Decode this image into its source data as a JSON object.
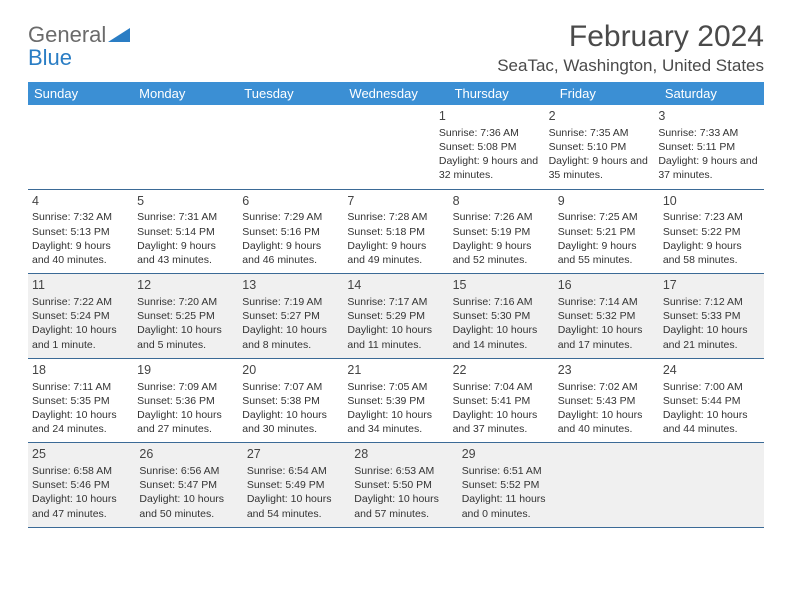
{
  "logo": {
    "text1": "General",
    "text2": "Blue",
    "shape_color": "#2a7dc4",
    "text1_color": "#6b6b6b",
    "text2_color": "#2a7dc4"
  },
  "title": "February 2024",
  "location": "SeaTac, Washington, United States",
  "colors": {
    "header_bg": "#3b8fd4",
    "header_text": "#ffffff",
    "row_border": "#3b6a96",
    "shaded_bg": "#f0f0f0"
  },
  "day_names": [
    "Sunday",
    "Monday",
    "Tuesday",
    "Wednesday",
    "Thursday",
    "Friday",
    "Saturday"
  ],
  "weeks": [
    [
      null,
      null,
      null,
      null,
      {
        "n": "1",
        "sr": "Sunrise: 7:36 AM",
        "ss": "Sunset: 5:08 PM",
        "dl": "Daylight: 9 hours and 32 minutes."
      },
      {
        "n": "2",
        "sr": "Sunrise: 7:35 AM",
        "ss": "Sunset: 5:10 PM",
        "dl": "Daylight: 9 hours and 35 minutes."
      },
      {
        "n": "3",
        "sr": "Sunrise: 7:33 AM",
        "ss": "Sunset: 5:11 PM",
        "dl": "Daylight: 9 hours and 37 minutes."
      }
    ],
    [
      {
        "n": "4",
        "sr": "Sunrise: 7:32 AM",
        "ss": "Sunset: 5:13 PM",
        "dl": "Daylight: 9 hours and 40 minutes."
      },
      {
        "n": "5",
        "sr": "Sunrise: 7:31 AM",
        "ss": "Sunset: 5:14 PM",
        "dl": "Daylight: 9 hours and 43 minutes."
      },
      {
        "n": "6",
        "sr": "Sunrise: 7:29 AM",
        "ss": "Sunset: 5:16 PM",
        "dl": "Daylight: 9 hours and 46 minutes."
      },
      {
        "n": "7",
        "sr": "Sunrise: 7:28 AM",
        "ss": "Sunset: 5:18 PM",
        "dl": "Daylight: 9 hours and 49 minutes."
      },
      {
        "n": "8",
        "sr": "Sunrise: 7:26 AM",
        "ss": "Sunset: 5:19 PM",
        "dl": "Daylight: 9 hours and 52 minutes."
      },
      {
        "n": "9",
        "sr": "Sunrise: 7:25 AM",
        "ss": "Sunset: 5:21 PM",
        "dl": "Daylight: 9 hours and 55 minutes."
      },
      {
        "n": "10",
        "sr": "Sunrise: 7:23 AM",
        "ss": "Sunset: 5:22 PM",
        "dl": "Daylight: 9 hours and 58 minutes."
      }
    ],
    [
      {
        "n": "11",
        "sr": "Sunrise: 7:22 AM",
        "ss": "Sunset: 5:24 PM",
        "dl": "Daylight: 10 hours and 1 minute."
      },
      {
        "n": "12",
        "sr": "Sunrise: 7:20 AM",
        "ss": "Sunset: 5:25 PM",
        "dl": "Daylight: 10 hours and 5 minutes."
      },
      {
        "n": "13",
        "sr": "Sunrise: 7:19 AM",
        "ss": "Sunset: 5:27 PM",
        "dl": "Daylight: 10 hours and 8 minutes."
      },
      {
        "n": "14",
        "sr": "Sunrise: 7:17 AM",
        "ss": "Sunset: 5:29 PM",
        "dl": "Daylight: 10 hours and 11 minutes."
      },
      {
        "n": "15",
        "sr": "Sunrise: 7:16 AM",
        "ss": "Sunset: 5:30 PM",
        "dl": "Daylight: 10 hours and 14 minutes."
      },
      {
        "n": "16",
        "sr": "Sunrise: 7:14 AM",
        "ss": "Sunset: 5:32 PM",
        "dl": "Daylight: 10 hours and 17 minutes."
      },
      {
        "n": "17",
        "sr": "Sunrise: 7:12 AM",
        "ss": "Sunset: 5:33 PM",
        "dl": "Daylight: 10 hours and 21 minutes."
      }
    ],
    [
      {
        "n": "18",
        "sr": "Sunrise: 7:11 AM",
        "ss": "Sunset: 5:35 PM",
        "dl": "Daylight: 10 hours and 24 minutes."
      },
      {
        "n": "19",
        "sr": "Sunrise: 7:09 AM",
        "ss": "Sunset: 5:36 PM",
        "dl": "Daylight: 10 hours and 27 minutes."
      },
      {
        "n": "20",
        "sr": "Sunrise: 7:07 AM",
        "ss": "Sunset: 5:38 PM",
        "dl": "Daylight: 10 hours and 30 minutes."
      },
      {
        "n": "21",
        "sr": "Sunrise: 7:05 AM",
        "ss": "Sunset: 5:39 PM",
        "dl": "Daylight: 10 hours and 34 minutes."
      },
      {
        "n": "22",
        "sr": "Sunrise: 7:04 AM",
        "ss": "Sunset: 5:41 PM",
        "dl": "Daylight: 10 hours and 37 minutes."
      },
      {
        "n": "23",
        "sr": "Sunrise: 7:02 AM",
        "ss": "Sunset: 5:43 PM",
        "dl": "Daylight: 10 hours and 40 minutes."
      },
      {
        "n": "24",
        "sr": "Sunrise: 7:00 AM",
        "ss": "Sunset: 5:44 PM",
        "dl": "Daylight: 10 hours and 44 minutes."
      }
    ],
    [
      {
        "n": "25",
        "sr": "Sunrise: 6:58 AM",
        "ss": "Sunset: 5:46 PM",
        "dl": "Daylight: 10 hours and 47 minutes."
      },
      {
        "n": "26",
        "sr": "Sunrise: 6:56 AM",
        "ss": "Sunset: 5:47 PM",
        "dl": "Daylight: 10 hours and 50 minutes."
      },
      {
        "n": "27",
        "sr": "Sunrise: 6:54 AM",
        "ss": "Sunset: 5:49 PM",
        "dl": "Daylight: 10 hours and 54 minutes."
      },
      {
        "n": "28",
        "sr": "Sunrise: 6:53 AM",
        "ss": "Sunset: 5:50 PM",
        "dl": "Daylight: 10 hours and 57 minutes."
      },
      {
        "n": "29",
        "sr": "Sunrise: 6:51 AM",
        "ss": "Sunset: 5:52 PM",
        "dl": "Daylight: 11 hours and 0 minutes."
      },
      null,
      null
    ]
  ],
  "shaded_rows": [
    2,
    4
  ]
}
